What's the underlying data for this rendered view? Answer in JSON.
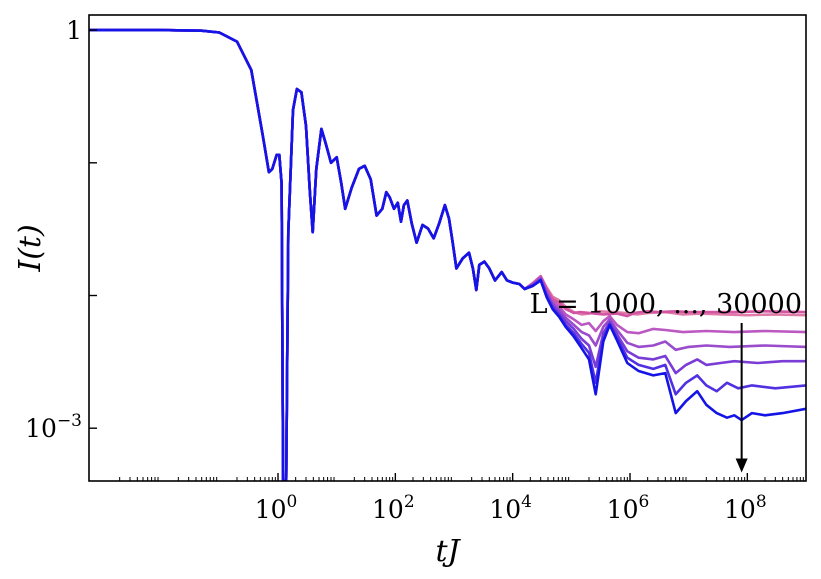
{
  "chart_data": {
    "type": "line",
    "title": "",
    "xlabel": "tJ",
    "ylabel": "I(t)",
    "xscale": "log",
    "yscale": "log",
    "xlim": [
      0.0006,
      1000000000
    ],
    "ylim": [
      0.0004,
      1.3
    ],
    "grid": false,
    "legend": "none",
    "x_ticks": [
      {
        "value": 1,
        "label_base": "10",
        "label_exp": "0"
      },
      {
        "value": 100,
        "label_base": "10",
        "label_exp": "2"
      },
      {
        "value": 10000,
        "label_base": "10",
        "label_exp": "4"
      },
      {
        "value": 1000000,
        "label_base": "10",
        "label_exp": "6"
      },
      {
        "value": 100000000,
        "label_base": "10",
        "label_exp": "8"
      }
    ],
    "y_ticks": [
      {
        "value": 1,
        "label_base": "1",
        "label_exp": ""
      },
      {
        "value": 0.1,
        "label_base": "",
        "label_exp": ""
      },
      {
        "value": 0.01,
        "label_base": "",
        "label_exp": ""
      },
      {
        "value": 0.001,
        "label_base": "10",
        "label_exp": "−3"
      }
    ],
    "annotation": {
      "text": "L = 1000, ..., 30000",
      "arrow_x": 80000000,
      "arrow_from_y": 0.0062,
      "arrow_to_y": 0.00048
    },
    "common": [
      [
        0.0006,
        1.0
      ],
      [
        0.01,
        1.0
      ],
      [
        0.05,
        0.99
      ],
      [
        0.1,
        0.96
      ],
      [
        0.2,
        0.82
      ],
      [
        0.35,
        0.5
      ],
      [
        0.55,
        0.16
      ],
      [
        0.7,
        0.085
      ],
      [
        0.8,
        0.09
      ],
      [
        0.95,
        0.115
      ],
      [
        1.05,
        0.115
      ],
      [
        1.15,
        0.07
      ],
      [
        1.22,
        0.0004
      ],
      [
        1.38,
        0.0004
      ],
      [
        1.5,
        0.03
      ],
      [
        1.8,
        0.25
      ],
      [
        2.1,
        0.36
      ],
      [
        2.5,
        0.34
      ],
      [
        3.0,
        0.19
      ],
      [
        3.5,
        0.06
      ],
      [
        3.9,
        0.03
      ],
      [
        4.5,
        0.09
      ],
      [
        5.5,
        0.18
      ],
      [
        6.5,
        0.14
      ],
      [
        8,
        0.1
      ],
      [
        10,
        0.11
      ],
      [
        12,
        0.07
      ],
      [
        14,
        0.045
      ],
      [
        18,
        0.065
      ],
      [
        24,
        0.09
      ],
      [
        30,
        0.095
      ],
      [
        38,
        0.075
      ],
      [
        48,
        0.04
      ],
      [
        60,
        0.045
      ],
      [
        70,
        0.06
      ],
      [
        80,
        0.055
      ],
      [
        95,
        0.045
      ],
      [
        110,
        0.05
      ],
      [
        125,
        0.036
      ],
      [
        140,
        0.048
      ],
      [
        160,
        0.052
      ],
      [
        190,
        0.035
      ],
      [
        230,
        0.025
      ],
      [
        290,
        0.034
      ],
      [
        360,
        0.032
      ],
      [
        450,
        0.027
      ],
      [
        560,
        0.035
      ],
      [
        700,
        0.048
      ],
      [
        820,
        0.038
      ],
      [
        950,
        0.025
      ],
      [
        1100,
        0.016
      ],
      [
        1400,
        0.019
      ],
      [
        1800,
        0.021
      ],
      [
        2100,
        0.016
      ],
      [
        2400,
        0.011
      ],
      [
        2700,
        0.017
      ],
      [
        3300,
        0.018
      ],
      [
        4000,
        0.016
      ],
      [
        5000,
        0.013
      ],
      [
        6500,
        0.015
      ],
      [
        8000,
        0.013
      ],
      [
        10000,
        0.0125
      ],
      [
        13000,
        0.0122
      ],
      [
        16000,
        0.0112
      ]
    ],
    "series": [
      {
        "color": "#e07aa8",
        "values": [
          [
            16000,
            0.0112
          ],
          [
            22000,
            0.0122
          ],
          [
            30000,
            0.0139
          ],
          [
            38000,
            0.0115
          ],
          [
            48000,
            0.0098
          ],
          [
            62000,
            0.0092
          ],
          [
            80000,
            0.0082
          ],
          [
            110000,
            0.0075
          ],
          [
            150000,
            0.0072
          ],
          [
            200000,
            0.0073
          ],
          [
            300000,
            0.0076
          ],
          [
            500000,
            0.0075
          ],
          [
            800000,
            0.0074
          ],
          [
            1300000,
            0.0072
          ],
          [
            2000000,
            0.0074
          ],
          [
            4000000,
            0.0075
          ],
          [
            8000000,
            0.0072
          ],
          [
            16000000,
            0.0073
          ],
          [
            40000000,
            0.0072
          ],
          [
            100000000,
            0.0071
          ],
          [
            300000000,
            0.0072
          ],
          [
            1000000000,
            0.0071
          ]
        ]
      },
      {
        "color": "#d254a2",
        "values": [
          [
            16000,
            0.0112
          ],
          [
            22000,
            0.0124
          ],
          [
            30000,
            0.014
          ],
          [
            38000,
            0.0112
          ],
          [
            48000,
            0.0094
          ],
          [
            62000,
            0.0088
          ],
          [
            80000,
            0.0079
          ],
          [
            110000,
            0.0074
          ],
          [
            140000,
            0.0075
          ],
          [
            200000,
            0.0074
          ],
          [
            350000,
            0.0072
          ],
          [
            600000,
            0.0073
          ],
          [
            900000,
            0.007
          ],
          [
            1200000,
            0.0074
          ],
          [
            2000000,
            0.0076
          ],
          [
            3000000,
            0.0075
          ],
          [
            6000000,
            0.0076
          ],
          [
            10000000,
            0.0075
          ],
          [
            20000000,
            0.0075
          ],
          [
            60000000,
            0.0075
          ],
          [
            200000000,
            0.0076
          ],
          [
            1000000000,
            0.0075
          ]
        ]
      },
      {
        "color": "#bb58c2",
        "values": [
          [
            16000,
            0.0112
          ],
          [
            22000,
            0.0123
          ],
          [
            30000,
            0.0137
          ],
          [
            38000,
            0.0108
          ],
          [
            48000,
            0.009
          ],
          [
            62000,
            0.0083
          ],
          [
            80000,
            0.0072
          ],
          [
            110000,
            0.0066
          ],
          [
            150000,
            0.006
          ],
          [
            200000,
            0.0062
          ],
          [
            260000,
            0.0054
          ],
          [
            350000,
            0.0064
          ],
          [
            450000,
            0.007
          ],
          [
            600000,
            0.006
          ],
          [
            900000,
            0.0053
          ],
          [
            1400000,
            0.0052
          ],
          [
            2500000,
            0.0056
          ],
          [
            4000000,
            0.0055
          ],
          [
            8000000,
            0.0053
          ],
          [
            20000000,
            0.0054
          ],
          [
            60000000,
            0.0053
          ],
          [
            200000000,
            0.0054
          ],
          [
            1000000000,
            0.0053
          ]
        ]
      },
      {
        "color": "#9a4ccc",
        "values": [
          [
            16000,
            0.0112
          ],
          [
            22000,
            0.0121
          ],
          [
            30000,
            0.0135
          ],
          [
            38000,
            0.0105
          ],
          [
            48000,
            0.0087
          ],
          [
            62000,
            0.0078
          ],
          [
            80000,
            0.0068
          ],
          [
            110000,
            0.006
          ],
          [
            150000,
            0.0053
          ],
          [
            200000,
            0.005
          ],
          [
            260000,
            0.0042
          ],
          [
            350000,
            0.0058
          ],
          [
            450000,
            0.0066
          ],
          [
            600000,
            0.0055
          ],
          [
            900000,
            0.0044
          ],
          [
            1400000,
            0.0041
          ],
          [
            2500000,
            0.0042
          ],
          [
            4000000,
            0.0045
          ],
          [
            6000000,
            0.0039
          ],
          [
            10000000,
            0.0041
          ],
          [
            20000000,
            0.0042
          ],
          [
            50000000,
            0.0041
          ],
          [
            200000000,
            0.0042
          ],
          [
            1000000000,
            0.0041
          ]
        ]
      },
      {
        "color": "#7a3cd6",
        "values": [
          [
            16000,
            0.0112
          ],
          [
            22000,
            0.012
          ],
          [
            30000,
            0.0133
          ],
          [
            38000,
            0.0102
          ],
          [
            48000,
            0.0084
          ],
          [
            62000,
            0.0074
          ],
          [
            80000,
            0.0064
          ],
          [
            110000,
            0.0056
          ],
          [
            150000,
            0.0047
          ],
          [
            200000,
            0.0042
          ],
          [
            260000,
            0.0029
          ],
          [
            350000,
            0.0052
          ],
          [
            450000,
            0.0063
          ],
          [
            600000,
            0.0051
          ],
          [
            900000,
            0.0038
          ],
          [
            1400000,
            0.0034
          ],
          [
            2500000,
            0.0033
          ],
          [
            4000000,
            0.0035
          ],
          [
            6000000,
            0.0026
          ],
          [
            9000000,
            0.003
          ],
          [
            14000000,
            0.0033
          ],
          [
            20000000,
            0.003
          ],
          [
            35000000,
            0.0031
          ],
          [
            60000000,
            0.0032
          ],
          [
            150000000,
            0.0031
          ],
          [
            400000000,
            0.0032
          ],
          [
            1000000000,
            0.0032
          ]
        ]
      },
      {
        "color": "#5130e2",
        "values": [
          [
            16000,
            0.0112
          ],
          [
            22000,
            0.0119
          ],
          [
            30000,
            0.0131
          ],
          [
            38000,
            0.0099
          ],
          [
            48000,
            0.0081
          ],
          [
            62000,
            0.0071
          ],
          [
            80000,
            0.006
          ],
          [
            110000,
            0.0052
          ],
          [
            150000,
            0.0043
          ],
          [
            200000,
            0.0037
          ],
          [
            260000,
            0.0022
          ],
          [
            350000,
            0.0048
          ],
          [
            450000,
            0.0061
          ],
          [
            600000,
            0.0048
          ],
          [
            900000,
            0.0034
          ],
          [
            1400000,
            0.003
          ],
          [
            2500000,
            0.0028
          ],
          [
            4000000,
            0.003
          ],
          [
            6000000,
            0.0018
          ],
          [
            9000000,
            0.0022
          ],
          [
            14000000,
            0.0025
          ],
          [
            20000000,
            0.0021
          ],
          [
            30000000,
            0.0019
          ],
          [
            45000000,
            0.0022
          ],
          [
            70000000,
            0.002
          ],
          [
            120000000,
            0.0021
          ],
          [
            300000000,
            0.002
          ],
          [
            1000000000,
            0.0021
          ]
        ]
      },
      {
        "color": "#1414e6",
        "values": [
          [
            16000,
            0.0112
          ],
          [
            22000,
            0.0118
          ],
          [
            30000,
            0.013
          ],
          [
            38000,
            0.0097
          ],
          [
            48000,
            0.0079
          ],
          [
            62000,
            0.0069
          ],
          [
            80000,
            0.0058
          ],
          [
            110000,
            0.0049
          ],
          [
            150000,
            0.004
          ],
          [
            200000,
            0.0033
          ],
          [
            260000,
            0.0018
          ],
          [
            350000,
            0.0045
          ],
          [
            450000,
            0.006
          ],
          [
            600000,
            0.0046
          ],
          [
            900000,
            0.0031
          ],
          [
            1400000,
            0.0027
          ],
          [
            2500000,
            0.0025
          ],
          [
            4000000,
            0.0026
          ],
          [
            6000000,
            0.0013
          ],
          [
            9000000,
            0.0016
          ],
          [
            14000000,
            0.0019
          ],
          [
            20000000,
            0.0015
          ],
          [
            30000000,
            0.0013
          ],
          [
            45000000,
            0.0012
          ],
          [
            60000000,
            0.00125
          ],
          [
            80000000,
            0.00115
          ],
          [
            120000000,
            0.0013
          ],
          [
            200000000,
            0.00125
          ],
          [
            400000000,
            0.0013
          ],
          [
            1000000000,
            0.0014
          ]
        ]
      }
    ]
  }
}
